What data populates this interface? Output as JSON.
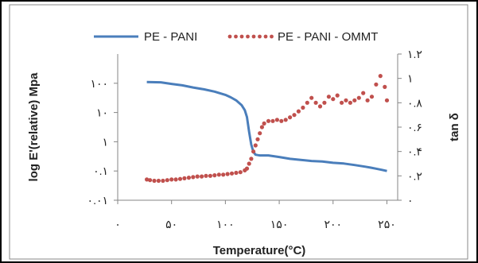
{
  "chart_data": {
    "type": "line",
    "title": "",
    "xlabel": "Temperature(°C)",
    "ylabel_left": "log E'(relative) Mpa",
    "ylabel_right": "tan δ",
    "xlim": [
      0,
      260
    ],
    "xticks": [
      0,
      50,
      100,
      150,
      200,
      250
    ],
    "xtick_labels": [
      "۰",
      "۵۰",
      "۱۰۰",
      "۱۵۰",
      "۲۰۰",
      "۲۵۰"
    ],
    "y_left_scale": "log",
    "y_left_lim": [
      0.01,
      1000
    ],
    "y_left_ticks": [
      0.01,
      0.1,
      1,
      10,
      100
    ],
    "y_left_tick_labels": [
      "۰.۰۱",
      "۰.۱",
      "۱",
      "۱۰",
      "۱۰۰"
    ],
    "y_right_lim": [
      0,
      1.2
    ],
    "y_right_ticks": [
      0,
      0.2,
      0.4,
      0.6,
      0.8,
      1,
      1.2
    ],
    "y_right_tick_labels": [
      "۰",
      "۰.۲",
      "۰.۴",
      "۰.۶",
      "۰.۸",
      "۱",
      "۱.۲"
    ],
    "legend_position": "top",
    "grid": false,
    "series": [
      {
        "name": "PE - PANI",
        "axis": "left",
        "style": "solid",
        "color": "#4a7ebb",
        "x": [
          27,
          40,
          50,
          60,
          70,
          80,
          90,
          100,
          105,
          110,
          115,
          118,
          120,
          122,
          124,
          126,
          128,
          130,
          132,
          135,
          140,
          150,
          160,
          170,
          180,
          190,
          200,
          210,
          220,
          230,
          235,
          240,
          245,
          250
        ],
        "y": [
          110,
          108,
          95,
          85,
          72,
          62,
          52,
          40,
          33,
          26,
          18,
          12,
          7,
          2.2,
          0.8,
          0.45,
          0.36,
          0.35,
          0.34,
          0.34,
          0.34,
          0.3,
          0.26,
          0.24,
          0.22,
          0.21,
          0.19,
          0.18,
          0.16,
          0.14,
          0.13,
          0.12,
          0.11,
          0.1
        ]
      },
      {
        "name": "PE - PANI - OMMT",
        "axis": "right",
        "style": "dotted",
        "color": "#c0504d",
        "x": [
          27,
          30,
          34,
          38,
          42,
          46,
          50,
          54,
          58,
          62,
          66,
          70,
          74,
          78,
          82,
          86,
          90,
          94,
          98,
          102,
          106,
          110,
          114,
          118,
          120,
          122,
          124,
          126,
          128,
          130,
          132,
          134,
          136,
          140,
          144,
          148,
          152,
          156,
          160,
          164,
          168,
          172,
          176,
          180,
          184,
          188,
          192,
          196,
          200,
          204,
          208,
          212,
          216,
          220,
          224,
          228,
          232,
          236,
          240,
          244,
          248,
          250
        ],
        "y": [
          0.17,
          0.165,
          0.16,
          0.16,
          0.16,
          0.165,
          0.17,
          0.17,
          0.175,
          0.18,
          0.185,
          0.19,
          0.195,
          0.195,
          0.2,
          0.2,
          0.205,
          0.21,
          0.21,
          0.215,
          0.22,
          0.225,
          0.23,
          0.245,
          0.26,
          0.3,
          0.34,
          0.4,
          0.45,
          0.5,
          0.55,
          0.6,
          0.63,
          0.65,
          0.65,
          0.66,
          0.65,
          0.66,
          0.68,
          0.7,
          0.73,
          0.76,
          0.8,
          0.84,
          0.8,
          0.77,
          0.8,
          0.85,
          0.83,
          0.86,
          0.8,
          0.82,
          0.8,
          0.82,
          0.84,
          0.88,
          0.82,
          0.85,
          0.95,
          1.02,
          0.93,
          0.82
        ]
      }
    ]
  }
}
